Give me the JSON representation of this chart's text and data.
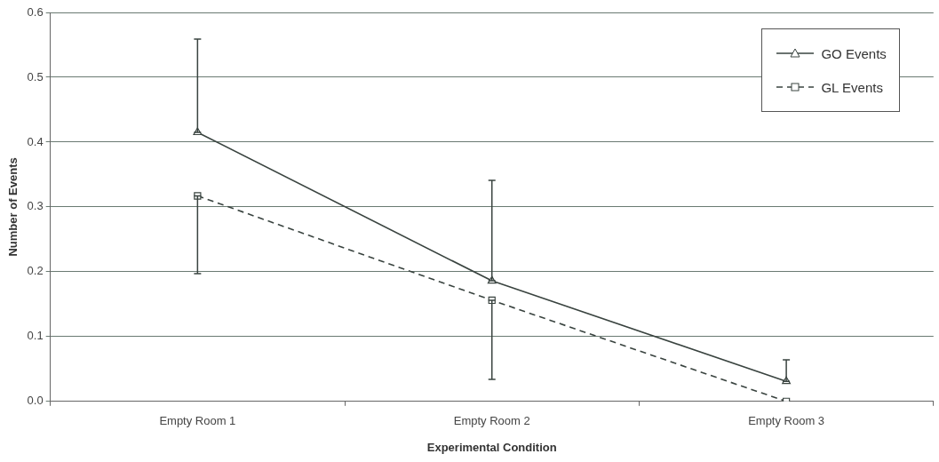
{
  "chart_data": {
    "type": "line",
    "xlabel": "Experimental Condition",
    "ylabel": "Number of Events",
    "categories": [
      "Empty Room 1",
      "Empty Room 2",
      "Empty Room 3"
    ],
    "series": [
      {
        "name": "GO Events",
        "color": "#3a4440",
        "values": [
          0.415,
          0.186,
          0.031
        ],
        "marker": "triangle",
        "line_style": "solid",
        "errors": [
          [
            0.415,
            0.559
          ],
          [
            0.186,
            0.341
          ],
          [
            0.031,
            0.064
          ]
        ]
      },
      {
        "name": "GL Events",
        "color": "#3a4440",
        "values": [
          0.317,
          0.156,
          0.0
        ],
        "marker": "square",
        "line_style": "dashed",
        "errors": [
          [
            0.197,
            0.317
          ],
          [
            0.034,
            0.156
          ],
          null
        ]
      }
    ],
    "ylim": [
      0,
      0.6
    ],
    "yticks": [
      {
        "value": 0,
        "label": "0.0"
      },
      {
        "value": 0.1,
        "label": "0.1"
      },
      {
        "value": 0.2,
        "label": "0.2"
      },
      {
        "value": 0.3,
        "label": "0.3"
      },
      {
        "value": 0.4,
        "label": "0.4"
      },
      {
        "value": 0.5,
        "label": "0.5"
      },
      {
        "value": 0.6,
        "label": "0.6"
      }
    ],
    "grid": "y",
    "legend": "top right"
  }
}
